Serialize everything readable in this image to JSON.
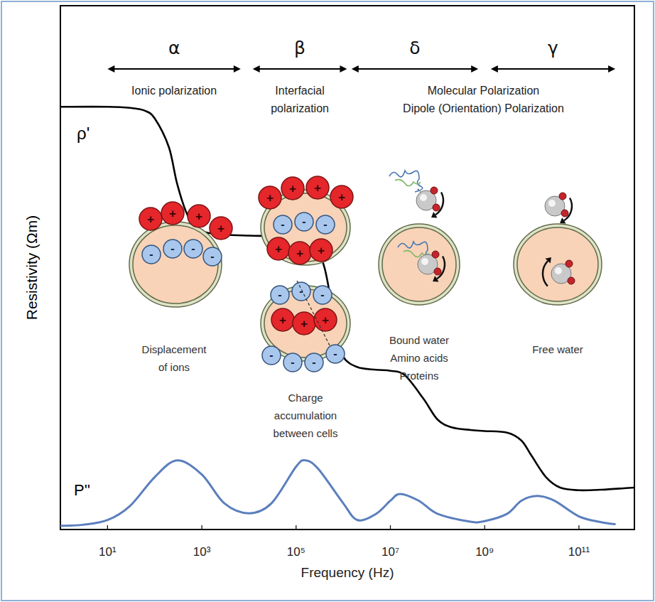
{
  "chart_data": {
    "type": "line",
    "xlabel": "Frequency (Hz)",
    "ylabel": "Resistivity (Ωm)",
    "log": "x",
    "grid": false,
    "tick_labels": "x",
    "xlim": [
      1,
      1500000000000.0
    ],
    "xticks": [
      {
        "value": 10,
        "label": "10¹"
      },
      {
        "value": 1000,
        "label": "10³"
      },
      {
        "value": 100000,
        "label": "10⁵"
      },
      {
        "value": 10000000,
        "label": "10⁷"
      },
      {
        "value": 1000000000,
        "label": "10⁹"
      },
      {
        "value": 100000000000,
        "label": "10¹¹"
      }
    ],
    "ylim": [
      0,
      100
    ],
    "series": [
      {
        "name": "ρ'",
        "color": "#000000",
        "x": [
          1,
          10,
          30,
          60,
          100,
          200,
          300,
          500,
          1000,
          3000,
          10000,
          30000,
          100000,
          200000,
          400000,
          700000,
          1000000,
          2000000,
          5000000,
          10000000,
          20000000,
          50000000,
          100000000,
          200000000,
          500000000,
          1000000000,
          3000000000,
          6000000000,
          10000000000,
          20000000000,
          40000000000,
          100000000000,
          300000000000,
          1000000000000,
          1500000000000
        ],
        "values": [
          80.7,
          80.7,
          80.5,
          80,
          78.5,
          73,
          66,
          60,
          57,
          56.3,
          56.1,
          56,
          55.8,
          55.5,
          50,
          38,
          33,
          31,
          30.5,
          30.3,
          29.5,
          25,
          21,
          19.5,
          19,
          18.8,
          18.5,
          17,
          14,
          10,
          8,
          7.5,
          7.6,
          7.9,
          8
        ]
      },
      {
        "name": "P''",
        "color": "#5b7fbd",
        "x": [
          1,
          3,
          10,
          30,
          100,
          300,
          1000,
          3000,
          10000,
          30000,
          100000,
          160000,
          300000,
          1000000,
          2000000,
          5000000,
          10000000,
          16000000,
          40000000,
          100000000,
          500000000,
          1000000000,
          3000000000,
          6000000000,
          13000000000,
          30000000000,
          100000000000,
          300000000000,
          600000000000
        ],
        "values": [
          0.7,
          0.9,
          1.8,
          4.5,
          10,
          13.2,
          10.5,
          5,
          3.1,
          5,
          12,
          13.2,
          11.5,
          5,
          1.8,
          3,
          5.5,
          6.8,
          5.5,
          3,
          1.5,
          1.6,
          3,
          5.5,
          6.4,
          5.5,
          2.5,
          1.4,
          1
        ]
      }
    ],
    "regions": [
      {
        "label": "α",
        "from": 10,
        "to": 6700,
        "mechanism": [
          "Ionic polarization"
        ],
        "caption": [
          "Displacement",
          "of ions"
        ]
      },
      {
        "label": "β",
        "from": 12000,
        "to": 1200000,
        "mechanism": [
          "Interfacial",
          "polarization"
        ],
        "caption": [
          "Charge",
          "accumulation",
          "between cells"
        ]
      },
      {
        "label": "δ",
        "from": 1500000,
        "to": 730000000,
        "mechanism": [],
        "caption": [
          "Bound water",
          "Amino acids",
          "Proteins"
        ]
      },
      {
        "label": "γ",
        "from": 1350000000,
        "to": 590000000000,
        "mechanism": [],
        "caption": [
          "Free water"
        ]
      }
    ],
    "molecular_mechanism": [
      "Molecular Polarization",
      "Dipole (Orientation) Polarization"
    ],
    "ion_symbols": [
      "+",
      "-"
    ]
  }
}
